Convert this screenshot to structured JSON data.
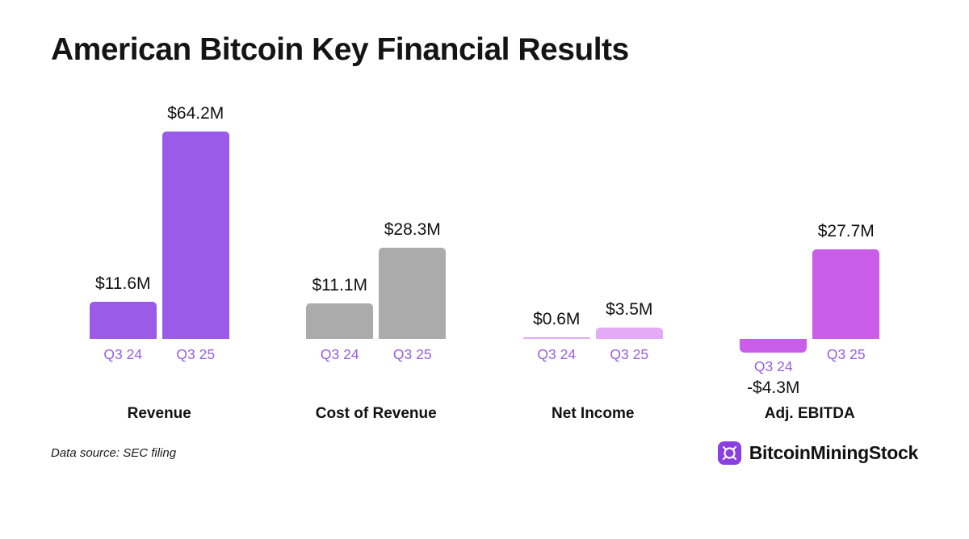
{
  "title": "American Bitcoin Key Financial Results",
  "footer": {
    "source_note": "Data source: SEC filing",
    "brand": "BitcoinMiningStock"
  },
  "chart_data": {
    "type": "bar",
    "unit": "USD millions",
    "categories": [
      "Q3 24",
      "Q3 25"
    ],
    "axis_label_color": "#9a5fe0",
    "value_label_color": "#111111",
    "baseline": 0,
    "grid": false,
    "legend": false,
    "groups": [
      {
        "label": "Revenue",
        "color": "#9a5ce8",
        "bars": [
          {
            "period": "Q3 24",
            "value": 11.6,
            "value_label": "$11.6M"
          },
          {
            "period": "Q3 25",
            "value": 64.2,
            "value_label": "$64.2M"
          }
        ]
      },
      {
        "label": "Cost of Revenue",
        "color": "#ababab",
        "bars": [
          {
            "period": "Q3 24",
            "value": 11.1,
            "value_label": "$11.1M"
          },
          {
            "period": "Q3 25",
            "value": 28.3,
            "value_label": "$28.3M"
          }
        ]
      },
      {
        "label": "Net Income",
        "color": "#e3abf4",
        "bars": [
          {
            "period": "Q3 24",
            "value": 0.6,
            "value_label": "$0.6M"
          },
          {
            "period": "Q3 25",
            "value": 3.5,
            "value_label": "$3.5M"
          }
        ]
      },
      {
        "label": "Adj. EBITDA",
        "color": "#c95ce8",
        "bars": [
          {
            "period": "Q3 24",
            "value": -4.3,
            "value_label": "-$4.3M"
          },
          {
            "period": "Q3 25",
            "value": 27.7,
            "value_label": "$27.7M"
          }
        ]
      }
    ]
  }
}
